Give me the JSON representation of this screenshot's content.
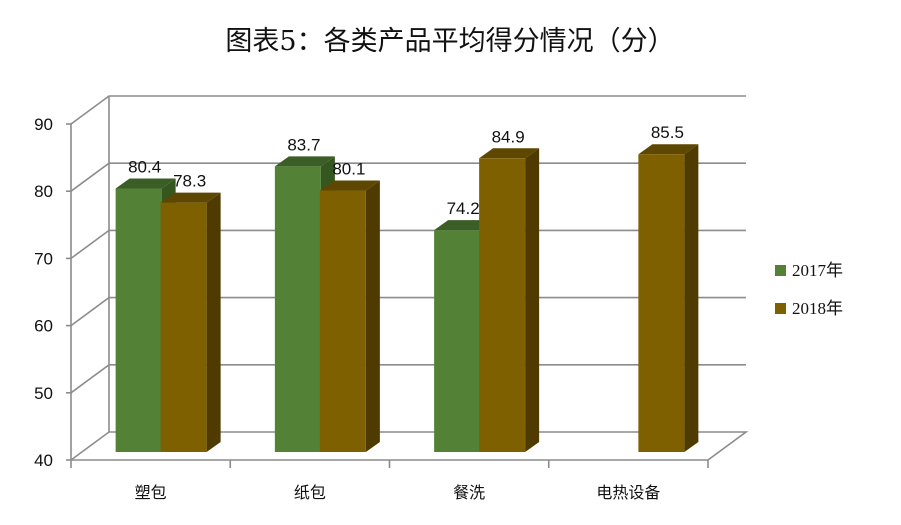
{
  "chart_data": {
    "type": "bar",
    "title": "图表5：各类产品平均得分情况（分）",
    "categories": [
      "塑包",
      "纸包",
      "餐洗",
      "电热设备"
    ],
    "series": [
      {
        "name": "2017年",
        "values": [
          80.4,
          83.7,
          74.2,
          null
        ],
        "labels": [
          "80.4",
          "83.7",
          "74.2",
          null
        ],
        "color": "#538135",
        "top_color": "#3b5e26",
        "side_color": "#36561f"
      },
      {
        "name": "2018年",
        "values": [
          78.3,
          80.1,
          84.9,
          85.5
        ],
        "labels": [
          "78.3",
          "80.1",
          "84.9",
          "85.5"
        ],
        "color": "#7f6000",
        "top_color": "#5e4700",
        "side_color": "#4f3b00"
      }
    ],
    "ylim": [
      40,
      90
    ],
    "yticks": [
      "40",
      "50",
      "60",
      "70",
      "80",
      "90"
    ],
    "grid": true,
    "legend_position": "right"
  }
}
